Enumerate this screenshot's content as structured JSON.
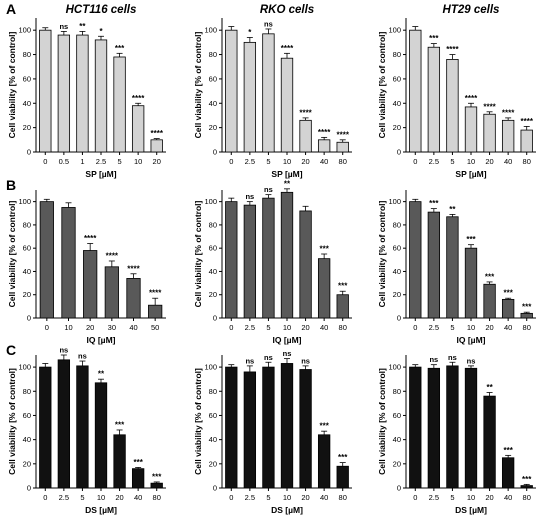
{
  "panel_labels": [
    "A",
    "B",
    "C"
  ],
  "column_titles": [
    "HCT116 cells",
    "RKO cells",
    "HT29 cells"
  ],
  "ylabel": "Cell viability [% of control]",
  "colors": {
    "A": "#d3d3d3",
    "B": "#595959",
    "C": "#111111",
    "axis": "#000000"
  },
  "chart_data": [
    {
      "type": "bar",
      "row": "A",
      "col": 0,
      "title": "HCT116 cells",
      "xlabel": "SP [µM]",
      "ylabel": "Cell viability [% of control]",
      "ylim": [
        0,
        110
      ],
      "yticks": [
        0,
        20,
        40,
        60,
        80,
        100
      ],
      "categories": [
        "0",
        "0.5",
        "1",
        "2.5",
        "5",
        "10",
        "20"
      ],
      "values": [
        100,
        96,
        96,
        92,
        78,
        38,
        10
      ],
      "errors": [
        2,
        3,
        3,
        3,
        3,
        2,
        1
      ],
      "annotations": [
        "",
        "ns",
        "**",
        "*",
        "***",
        "****",
        "****"
      ]
    },
    {
      "type": "bar",
      "row": "A",
      "col": 1,
      "title": "RKO cells",
      "xlabel": "SP [µM]",
      "ylabel": "Cell viability [% of control]",
      "ylim": [
        0,
        110
      ],
      "yticks": [
        0,
        20,
        40,
        60,
        80,
        100
      ],
      "categories": [
        "0",
        "2.5",
        "5",
        "10",
        "20",
        "40",
        "80"
      ],
      "values": [
        100,
        90,
        97,
        77,
        26,
        10,
        8
      ],
      "errors": [
        3,
        4,
        4,
        4,
        2,
        2,
        2
      ],
      "annotations": [
        "",
        "*",
        "ns",
        "****",
        "****",
        "****",
        "****"
      ]
    },
    {
      "type": "bar",
      "row": "A",
      "col": 2,
      "title": "HT29 cells",
      "xlabel": "SP [µM]",
      "ylabel": "Cell viability [% of control]",
      "ylim": [
        0,
        110
      ],
      "yticks": [
        0,
        20,
        40,
        60,
        80,
        100
      ],
      "categories": [
        "0",
        "2.5",
        "5",
        "10",
        "20",
        "40",
        "80"
      ],
      "values": [
        100,
        86,
        76,
        37,
        31,
        26,
        18
      ],
      "errors": [
        3,
        3,
        4,
        3,
        2,
        2,
        3
      ],
      "annotations": [
        "",
        "***",
        "****",
        "****",
        "****",
        "****",
        "****"
      ]
    },
    {
      "type": "bar",
      "row": "B",
      "col": 0,
      "title": "",
      "xlabel": "IQ [µM]",
      "ylabel": "Cell viability [% of control]",
      "ylim": [
        0,
        110
      ],
      "yticks": [
        0,
        20,
        40,
        60,
        80,
        100
      ],
      "categories": [
        "0",
        "10",
        "20",
        "30",
        "40",
        "50"
      ],
      "values": [
        100,
        95,
        58,
        44,
        34,
        11
      ],
      "errors": [
        2,
        4,
        6,
        5,
        4,
        6
      ],
      "annotations": [
        "",
        "",
        "****",
        "****",
        "****",
        "****"
      ]
    },
    {
      "type": "bar",
      "row": "B",
      "col": 1,
      "title": "",
      "xlabel": "IQ [µM]",
      "ylabel": "Cell viability [% of control]",
      "ylim": [
        0,
        110
      ],
      "yticks": [
        0,
        20,
        40,
        60,
        80,
        100
      ],
      "categories": [
        "0",
        "2.5",
        "5",
        "10",
        "20",
        "40",
        "80"
      ],
      "values": [
        100,
        97,
        103,
        108,
        92,
        51,
        20
      ],
      "errors": [
        3,
        3,
        3,
        3,
        4,
        4,
        3
      ],
      "annotations": [
        "",
        "ns",
        "ns",
        "**",
        "",
        "***",
        "***"
      ]
    },
    {
      "type": "bar",
      "row": "B",
      "col": 2,
      "title": "",
      "xlabel": "IQ [µM]",
      "ylabel": "Cell viability [% of control]",
      "ylim": [
        0,
        110
      ],
      "yticks": [
        0,
        20,
        40,
        60,
        80,
        100
      ],
      "categories": [
        "0",
        "2.5",
        "5",
        "10",
        "20",
        "40",
        "80"
      ],
      "values": [
        100,
        91,
        87,
        60,
        29,
        16,
        4
      ],
      "errors": [
        2,
        3,
        2,
        3,
        2,
        1,
        1
      ],
      "annotations": [
        "",
        "***",
        "**",
        "***",
        "***",
        "***",
        "***"
      ]
    },
    {
      "type": "bar",
      "row": "C",
      "col": 0,
      "title": "",
      "xlabel": "DS [µM]",
      "ylabel": "Cell viability [% of control]",
      "ylim": [
        0,
        110
      ],
      "yticks": [
        0,
        20,
        40,
        60,
        80,
        100
      ],
      "categories": [
        "0",
        "2.5",
        "5",
        "10",
        "20",
        "40",
        "80"
      ],
      "values": [
        100,
        106,
        101,
        87,
        44,
        16,
        4
      ],
      "errors": [
        3,
        4,
        4,
        3,
        4,
        1,
        1
      ],
      "annotations": [
        "",
        "ns",
        "ns",
        "**",
        "***",
        "***",
        "***"
      ]
    },
    {
      "type": "bar",
      "row": "C",
      "col": 1,
      "title": "",
      "xlabel": "DS [µM]",
      "ylabel": "Cell viability [% of control]",
      "ylim": [
        0,
        110
      ],
      "yticks": [
        0,
        20,
        40,
        60,
        80,
        100
      ],
      "categories": [
        "0",
        "2.5",
        "5",
        "10",
        "20",
        "40",
        "80"
      ],
      "values": [
        100,
        96,
        100,
        103,
        98,
        44,
        18
      ],
      "errors": [
        2,
        5,
        4,
        4,
        3,
        3,
        3
      ],
      "annotations": [
        "",
        "ns",
        "ns",
        "ns",
        "ns",
        "***",
        "***"
      ]
    },
    {
      "type": "bar",
      "row": "C",
      "col": 2,
      "title": "",
      "xlabel": "DS [µM]",
      "ylabel": "Cell viability [% of control]",
      "ylim": [
        0,
        110
      ],
      "yticks": [
        0,
        20,
        40,
        60,
        80,
        100
      ],
      "categories": [
        "0",
        "2.5",
        "5",
        "10",
        "20",
        "40",
        "80"
      ],
      "values": [
        100,
        99,
        101,
        99,
        76,
        25,
        2
      ],
      "errors": [
        2,
        3,
        3,
        2,
        3,
        2,
        1
      ],
      "annotations": [
        "",
        "ns",
        "ns",
        "ns",
        "**",
        "***",
        "***"
      ]
    }
  ]
}
